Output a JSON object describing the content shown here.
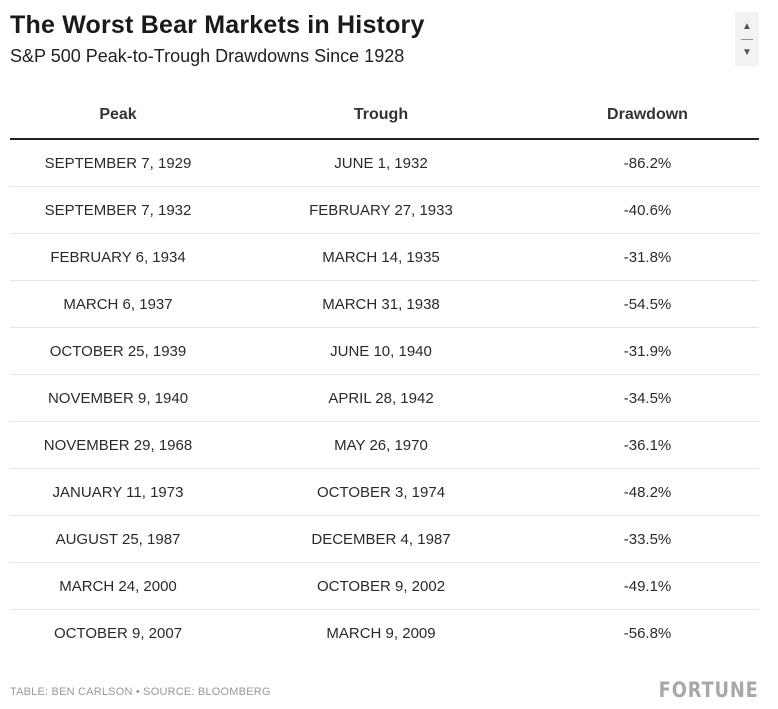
{
  "header": {
    "title": "The Worst Bear Markets in History",
    "subtitle": "S&P 500 Peak-to-Trough Drawdowns Since 1928"
  },
  "scroll": {
    "up_icon": "triangle-up-icon",
    "down_icon": "triangle-down-icon"
  },
  "chart_data": {
    "type": "table",
    "columns": [
      "Peak",
      "Trough",
      "Drawdown"
    ],
    "rows": [
      [
        "SEPTEMBER 7, 1929",
        "JUNE 1, 1932",
        "-86.2%"
      ],
      [
        "SEPTEMBER 7, 1932",
        "FEBRUARY 27, 1933",
        "-40.6%"
      ],
      [
        "FEBRUARY 6, 1934",
        "MARCH 14, 1935",
        "-31.8%"
      ],
      [
        "MARCH 6, 1937",
        "MARCH 31, 1938",
        "-54.5%"
      ],
      [
        "OCTOBER 25, 1939",
        "JUNE 10, 1940",
        "-31.9%"
      ],
      [
        "NOVEMBER 9, 1940",
        "APRIL 28, 1942",
        "-34.5%"
      ],
      [
        "NOVEMBER 29, 1968",
        "MAY 26, 1970",
        "-36.1%"
      ],
      [
        "JANUARY 11, 1973",
        "OCTOBER 3, 1974",
        "-48.2%"
      ],
      [
        "AUGUST 25, 1987",
        "DECEMBER 4, 1987",
        "-33.5%"
      ],
      [
        "MARCH 24, 2000",
        "OCTOBER 9, 2002",
        "-49.1%"
      ],
      [
        "OCTOBER 9, 2007",
        "MARCH 9, 2009",
        "-56.8%"
      ]
    ]
  },
  "footer": {
    "credit": "TABLE: BEN CARLSON • SOURCE: BLOOMBERG",
    "logo": "FORTUNE"
  }
}
